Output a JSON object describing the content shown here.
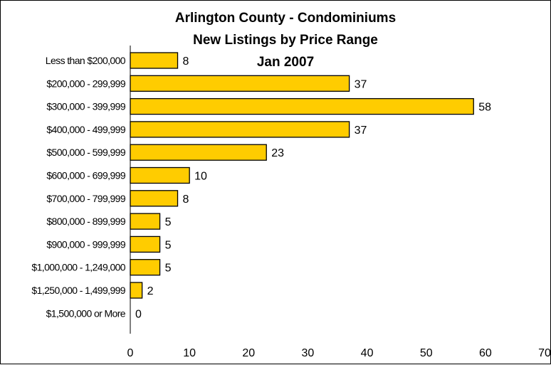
{
  "chart_data": {
    "type": "bar",
    "orientation": "horizontal",
    "title": [
      "Arlington County - Condominiums",
      "New Listings by Price Range",
      "Jan 2007"
    ],
    "xlabel": "",
    "ylabel": "",
    "categories": [
      "Less than $200,000",
      "$200,000 - 299,999",
      "$300,000 - 399,999",
      "$400,000 - 499,999",
      "$500,000 - 599,999",
      "$600,000 - 699,999",
      "$700,000 - 799,999",
      "$800,000 - 899,999",
      "$900,000 - 999,999",
      "$1,000,000 - 1,249,000",
      "$1,250,000 - 1,499,999",
      "$1,500,000 or More"
    ],
    "values": [
      8,
      37,
      58,
      37,
      23,
      10,
      8,
      5,
      5,
      5,
      2,
      0
    ],
    "xlim": [
      0,
      70
    ],
    "xticks": [
      0,
      10,
      20,
      30,
      40,
      50,
      60,
      70
    ],
    "grid": false,
    "legend": "none",
    "bar_color": "#ffcc00",
    "bar_edge_color": "#000000"
  }
}
